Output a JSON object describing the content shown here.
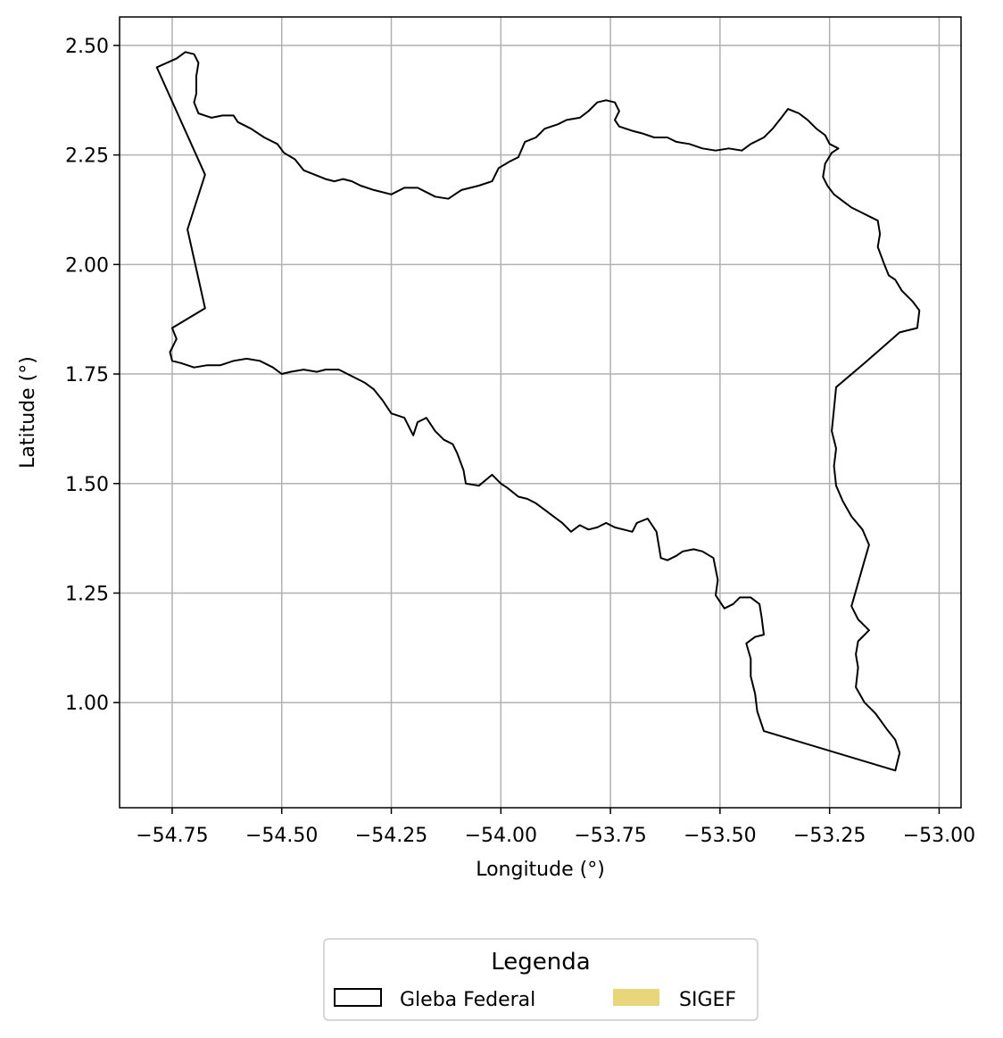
{
  "map": {
    "xlabel": "Longitude (°)",
    "ylabel": "Latitude (°)",
    "xlim": [
      -54.87,
      -52.95
    ],
    "ylim": [
      0.76,
      2.565
    ],
    "xticks": [
      -54.75,
      -54.5,
      -54.25,
      -54.0,
      -53.75,
      -53.5,
      -53.25,
      -53.0
    ],
    "xtick_labels": [
      "−54.75",
      "−54.50",
      "−54.25",
      "−54.00",
      "−53.75",
      "−53.50",
      "−53.25",
      "−53.00"
    ],
    "yticks": [
      1.0,
      1.25,
      1.5,
      1.75,
      2.0,
      2.25,
      2.5
    ],
    "ytick_labels": [
      "1.00",
      "1.25",
      "1.50",
      "1.75",
      "2.00",
      "2.25",
      "2.50"
    ],
    "grid": true,
    "colors": {
      "boundary": "#000000",
      "grid": "#b0b0b0",
      "sigef_fill": "#e9d67a"
    },
    "legend": {
      "title": "Legenda",
      "position": "bottom-center",
      "items": [
        {
          "label": "Gleba Federal",
          "style": "outline"
        },
        {
          "label": "SIGEF",
          "style": "filled"
        }
      ]
    },
    "boundary": [
      [
        -54.785,
        2.45
      ],
      [
        -54.74,
        2.47
      ],
      [
        -54.72,
        2.485
      ],
      [
        -54.7,
        2.48
      ],
      [
        -54.69,
        2.46
      ],
      [
        -54.695,
        2.43
      ],
      [
        -54.695,
        2.39
      ],
      [
        -54.7,
        2.37
      ],
      [
        -54.69,
        2.345
      ],
      [
        -54.66,
        2.335
      ],
      [
        -54.635,
        2.34
      ],
      [
        -54.61,
        2.34
      ],
      [
        -54.6,
        2.325
      ],
      [
        -54.57,
        2.31
      ],
      [
        -54.54,
        2.29
      ],
      [
        -54.51,
        2.275
      ],
      [
        -54.495,
        2.255
      ],
      [
        -54.47,
        2.24
      ],
      [
        -54.45,
        2.215
      ],
      [
        -54.425,
        2.205
      ],
      [
        -54.4,
        2.195
      ],
      [
        -54.38,
        2.19
      ],
      [
        -54.36,
        2.195
      ],
      [
        -54.34,
        2.19
      ],
      [
        -54.32,
        2.18
      ],
      [
        -54.29,
        2.17
      ],
      [
        -54.25,
        2.16
      ],
      [
        -54.22,
        2.175
      ],
      [
        -54.19,
        2.175
      ],
      [
        -54.17,
        2.165
      ],
      [
        -54.15,
        2.155
      ],
      [
        -54.12,
        2.15
      ],
      [
        -54.09,
        2.17
      ],
      [
        -54.05,
        2.18
      ],
      [
        -54.02,
        2.19
      ],
      [
        -54.005,
        2.22
      ],
      [
        -53.98,
        2.235
      ],
      [
        -53.96,
        2.245
      ],
      [
        -53.945,
        2.28
      ],
      [
        -53.92,
        2.29
      ],
      [
        -53.9,
        2.31
      ],
      [
        -53.87,
        2.32
      ],
      [
        -53.85,
        2.33
      ],
      [
        -53.82,
        2.335
      ],
      [
        -53.8,
        2.35
      ],
      [
        -53.78,
        2.37
      ],
      [
        -53.76,
        2.375
      ],
      [
        -53.74,
        2.37
      ],
      [
        -53.73,
        2.35
      ],
      [
        -53.74,
        2.33
      ],
      [
        -53.73,
        2.315
      ],
      [
        -53.7,
        2.305
      ],
      [
        -53.68,
        2.3
      ],
      [
        -53.65,
        2.29
      ],
      [
        -53.62,
        2.29
      ],
      [
        -53.6,
        2.28
      ],
      [
        -53.57,
        2.275
      ],
      [
        -53.54,
        2.265
      ],
      [
        -53.51,
        2.26
      ],
      [
        -53.48,
        2.265
      ],
      [
        -53.45,
        2.26
      ],
      [
        -53.43,
        2.275
      ],
      [
        -53.4,
        2.29
      ],
      [
        -53.38,
        2.31
      ],
      [
        -53.36,
        2.335
      ],
      [
        -53.345,
        2.355
      ],
      [
        -53.32,
        2.345
      ],
      [
        -53.3,
        2.33
      ],
      [
        -53.28,
        2.31
      ],
      [
        -53.26,
        2.295
      ],
      [
        -53.25,
        2.275
      ],
      [
        -53.23,
        2.265
      ],
      [
        -53.245,
        2.255
      ],
      [
        -53.26,
        2.23
      ],
      [
        -53.265,
        2.2
      ],
      [
        -53.255,
        2.18
      ],
      [
        -53.24,
        2.16
      ],
      [
        -53.22,
        2.145
      ],
      [
        -53.2,
        2.13
      ],
      [
        -53.18,
        2.12
      ],
      [
        -53.16,
        2.11
      ],
      [
        -53.14,
        2.1
      ],
      [
        -53.135,
        2.07
      ],
      [
        -53.14,
        2.04
      ],
      [
        -53.125,
        2.0
      ],
      [
        -53.115,
        1.975
      ],
      [
        -53.1,
        1.965
      ],
      [
        -53.085,
        1.94
      ],
      [
        -53.06,
        1.915
      ],
      [
        -53.045,
        1.895
      ],
      [
        -53.05,
        1.855
      ],
      [
        -53.09,
        1.845
      ],
      [
        -53.17,
        1.775
      ],
      [
        -53.235,
        1.72
      ],
      [
        -53.24,
        1.67
      ],
      [
        -53.245,
        1.62
      ],
      [
        -53.235,
        1.58
      ],
      [
        -53.24,
        1.54
      ],
      [
        -53.235,
        1.495
      ],
      [
        -53.22,
        1.46
      ],
      [
        -53.2,
        1.425
      ],
      [
        -53.175,
        1.395
      ],
      [
        -53.16,
        1.36
      ],
      [
        -53.17,
        1.325
      ],
      [
        -53.18,
        1.29
      ],
      [
        -53.19,
        1.255
      ],
      [
        -53.2,
        1.22
      ],
      [
        -53.185,
        1.19
      ],
      [
        -53.16,
        1.165
      ],
      [
        -53.185,
        1.14
      ],
      [
        -53.19,
        1.11
      ],
      [
        -53.185,
        1.08
      ],
      [
        -53.19,
        1.035
      ],
      [
        -53.17,
        1.0
      ],
      [
        -53.145,
        0.975
      ],
      [
        -53.12,
        0.94
      ],
      [
        -53.1,
        0.915
      ],
      [
        -53.09,
        0.885
      ],
      [
        -53.1,
        0.845
      ],
      [
        -53.4,
        0.935
      ],
      [
        -53.415,
        0.98
      ],
      [
        -53.42,
        1.02
      ],
      [
        -53.43,
        1.06
      ],
      [
        -53.43,
        1.1
      ],
      [
        -53.44,
        1.135
      ],
      [
        -53.42,
        1.15
      ],
      [
        -53.4,
        1.155
      ],
      [
        -53.405,
        1.195
      ],
      [
        -53.41,
        1.225
      ],
      [
        -53.43,
        1.24
      ],
      [
        -53.455,
        1.24
      ],
      [
        -53.47,
        1.225
      ],
      [
        -53.49,
        1.215
      ],
      [
        -53.51,
        1.245
      ],
      [
        -53.505,
        1.28
      ],
      [
        -53.515,
        1.33
      ],
      [
        -53.54,
        1.345
      ],
      [
        -53.56,
        1.35
      ],
      [
        -53.585,
        1.345
      ],
      [
        -53.6,
        1.335
      ],
      [
        -53.62,
        1.325
      ],
      [
        -53.635,
        1.33
      ],
      [
        -53.645,
        1.39
      ],
      [
        -53.665,
        1.42
      ],
      [
        -53.69,
        1.41
      ],
      [
        -53.7,
        1.39
      ],
      [
        -53.72,
        1.395
      ],
      [
        -53.74,
        1.4
      ],
      [
        -53.76,
        1.41
      ],
      [
        -53.78,
        1.4
      ],
      [
        -53.8,
        1.395
      ],
      [
        -53.82,
        1.405
      ],
      [
        -53.84,
        1.39
      ],
      [
        -53.86,
        1.41
      ],
      [
        -53.88,
        1.425
      ],
      [
        -53.9,
        1.44
      ],
      [
        -53.92,
        1.455
      ],
      [
        -53.94,
        1.465
      ],
      [
        -53.96,
        1.47
      ],
      [
        -53.985,
        1.49
      ],
      [
        -54.0,
        1.5
      ],
      [
        -54.02,
        1.52
      ],
      [
        -54.05,
        1.495
      ],
      [
        -54.08,
        1.5
      ],
      [
        -54.085,
        1.53
      ],
      [
        -54.1,
        1.57
      ],
      [
        -54.11,
        1.59
      ],
      [
        -54.13,
        1.6
      ],
      [
        -54.15,
        1.62
      ],
      [
        -54.17,
        1.65
      ],
      [
        -54.19,
        1.64
      ],
      [
        -54.2,
        1.61
      ],
      [
        -54.22,
        1.65
      ],
      [
        -54.25,
        1.66
      ],
      [
        -54.27,
        1.69
      ],
      [
        -54.29,
        1.715
      ],
      [
        -54.31,
        1.73
      ],
      [
        -54.34,
        1.745
      ],
      [
        -54.37,
        1.76
      ],
      [
        -54.4,
        1.76
      ],
      [
        -54.42,
        1.755
      ],
      [
        -54.45,
        1.76
      ],
      [
        -54.48,
        1.755
      ],
      [
        -54.5,
        1.75
      ],
      [
        -54.52,
        1.765
      ],
      [
        -54.55,
        1.78
      ],
      [
        -54.58,
        1.785
      ],
      [
        -54.61,
        1.78
      ],
      [
        -54.64,
        1.77
      ],
      [
        -54.67,
        1.77
      ],
      [
        -54.7,
        1.765
      ],
      [
        -54.73,
        1.775
      ],
      [
        -54.75,
        1.78
      ],
      [
        -54.755,
        1.8
      ],
      [
        -54.74,
        1.83
      ],
      [
        -54.75,
        1.855
      ],
      [
        -54.675,
        1.9
      ],
      [
        -54.715,
        2.08
      ],
      [
        -54.675,
        2.205
      ],
      [
        -54.785,
        2.45
      ]
    ]
  }
}
